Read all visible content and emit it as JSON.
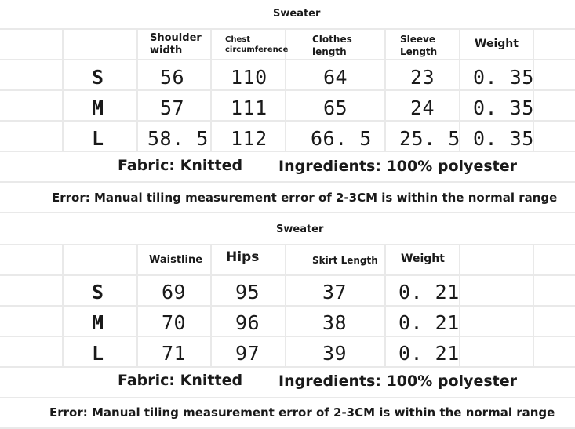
{
  "top": {
    "title": "Sweater",
    "headers": [
      "Shoulder width",
      "Chest circumference",
      "Clothes length",
      "Sleeve Length",
      "Weight"
    ],
    "rows": [
      {
        "size": "S",
        "cells": [
          "56",
          "110",
          "64",
          "23",
          "0. 35"
        ]
      },
      {
        "size": "M",
        "cells": [
          "57",
          "111",
          "65",
          "24",
          "0. 35"
        ]
      },
      {
        "size": "L",
        "cells": [
          "58. 5",
          "112",
          "66. 5",
          "25. 5",
          "0. 35"
        ]
      }
    ],
    "fabric": "Fabric: Knitted",
    "ingredients": "Ingredients: 100% polyester",
    "error": "Error: Manual tiling measurement error of 2-3CM is within the normal range"
  },
  "bottom": {
    "title": "Sweater",
    "headers": [
      "Waistline",
      "Hips",
      "Skirt Length",
      "Weight"
    ],
    "rows": [
      {
        "size": "S",
        "cells": [
          "69",
          "95",
          "37",
          "0. 21"
        ]
      },
      {
        "size": "M",
        "cells": [
          "70",
          "96",
          "38",
          "0. 21"
        ]
      },
      {
        "size": "L",
        "cells": [
          "71",
          "97",
          "39",
          "0. 21"
        ]
      }
    ],
    "fabric": "Fabric: Knitted",
    "ingredients": "Ingredients: 100% polyester",
    "error": "Error: Manual tiling measurement error of 2-3CM is within the normal range"
  }
}
